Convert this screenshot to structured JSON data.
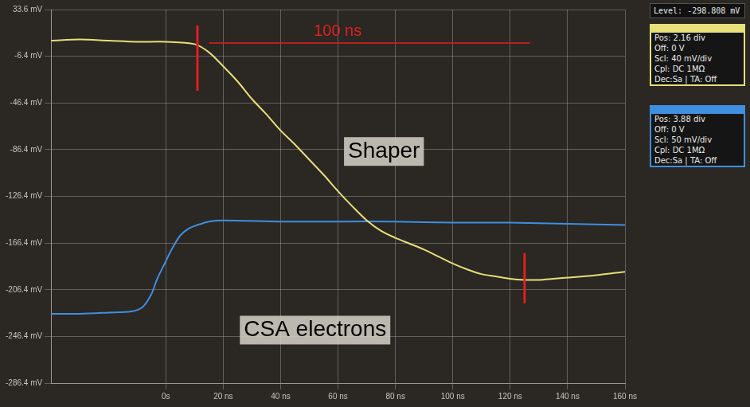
{
  "chart_data": {
    "type": "line",
    "grid": true,
    "xlim": [
      -40,
      160
    ],
    "xticks": [
      {
        "value": 0,
        "label": "0s"
      },
      {
        "value": 20,
        "label": "20 ns"
      },
      {
        "value": 40,
        "label": "40 ns"
      },
      {
        "value": 60,
        "label": "60 ns"
      },
      {
        "value": 80,
        "label": "80 ns"
      },
      {
        "value": 100,
        "label": "100 ns"
      },
      {
        "value": 120,
        "label": "120 ns"
      },
      {
        "value": 140,
        "label": "140 ns"
      },
      {
        "value": 160,
        "label": "160 ns"
      }
    ],
    "ylim": [
      -286.4,
      33.6
    ],
    "yticks": [
      {
        "value": 33.6,
        "label": "33.6 mV"
      },
      {
        "value": -6.4,
        "label": "-6.4 mV"
      },
      {
        "value": -46.4,
        "label": "-46.4 mV"
      },
      {
        "value": -86.4,
        "label": "-86.4 mV"
      },
      {
        "value": -126.4,
        "label": "-126.4 mV"
      },
      {
        "value": -166.4,
        "label": "-166.4 mV"
      },
      {
        "value": -206.4,
        "label": "-206.4 mV"
      },
      {
        "value": -246.4,
        "label": "-246.4 mV"
      },
      {
        "value": -286.4,
        "label": "-286.4 mV"
      }
    ],
    "series": [
      {
        "color": "#e6df7a",
        "x": [
          -40,
          -30,
          -20,
          -10,
          0,
          10,
          15,
          20,
          25,
          30,
          35,
          40,
          45,
          50,
          55,
          60,
          65,
          70,
          75,
          80,
          85,
          90,
          95,
          100,
          105,
          110,
          115,
          120,
          125,
          130,
          135,
          140,
          150,
          160
        ],
        "values": [
          7,
          8,
          7,
          6,
          6,
          4,
          -3,
          -15,
          -28,
          -43,
          -56,
          -70,
          -82,
          -95,
          -108,
          -122,
          -135,
          -147,
          -156,
          -162,
          -167,
          -172,
          -178,
          -184,
          -189,
          -193,
          -195,
          -197,
          -198,
          -198,
          -197,
          -196,
          -194,
          -191
        ]
      },
      {
        "color": "#3f8fe0",
        "x": [
          -40,
          -30,
          -20,
          -12,
          -8,
          -5,
          -3,
          0,
          2,
          5,
          8,
          11,
          15,
          20,
          40,
          60,
          80,
          100,
          120,
          140,
          160
        ],
        "values": [
          -227,
          -227,
          -226,
          -225,
          -221,
          -210,
          -197,
          -182,
          -172,
          -160,
          -154,
          -151,
          -148,
          -147,
          -148,
          -148,
          -148,
          -149,
          -149,
          -150,
          -151
        ]
      }
    ],
    "annotations": [
      {
        "text": "Shaper",
        "x": 76,
        "y": -88
      },
      {
        "text": "CSA electrons",
        "x": 52,
        "y": -241
      }
    ],
    "span": {
      "text": "100 ns",
      "x": [
        15,
        127
      ],
      "y": 5,
      "color": "#e02020"
    },
    "markers": [
      {
        "x": 11,
        "y": [
          20,
          -36
        ],
        "color": "#e02020"
      },
      {
        "x": 125,
        "y": [
          -175,
          -218
        ],
        "color": "#e02020"
      }
    ]
  },
  "scope_panel": {
    "level": "Level:   -298.808 mV",
    "channels": [
      {
        "color": "#e6df7a",
        "lines": [
          "Pos: 2.16 div",
          "Off: 0 V",
          "Scl: 40 mV/div",
          "Cpl: DC 1MΩ",
          "Dec:Sa | TA: Off"
        ]
      },
      {
        "color": "#3f8fe0",
        "lines": [
          "Pos: 3.88 div",
          "Off: 0 V",
          "Scl: 50 mV/div",
          "Cpl: DC 1MΩ",
          "Dec:Sa | TA: Off"
        ]
      }
    ]
  }
}
